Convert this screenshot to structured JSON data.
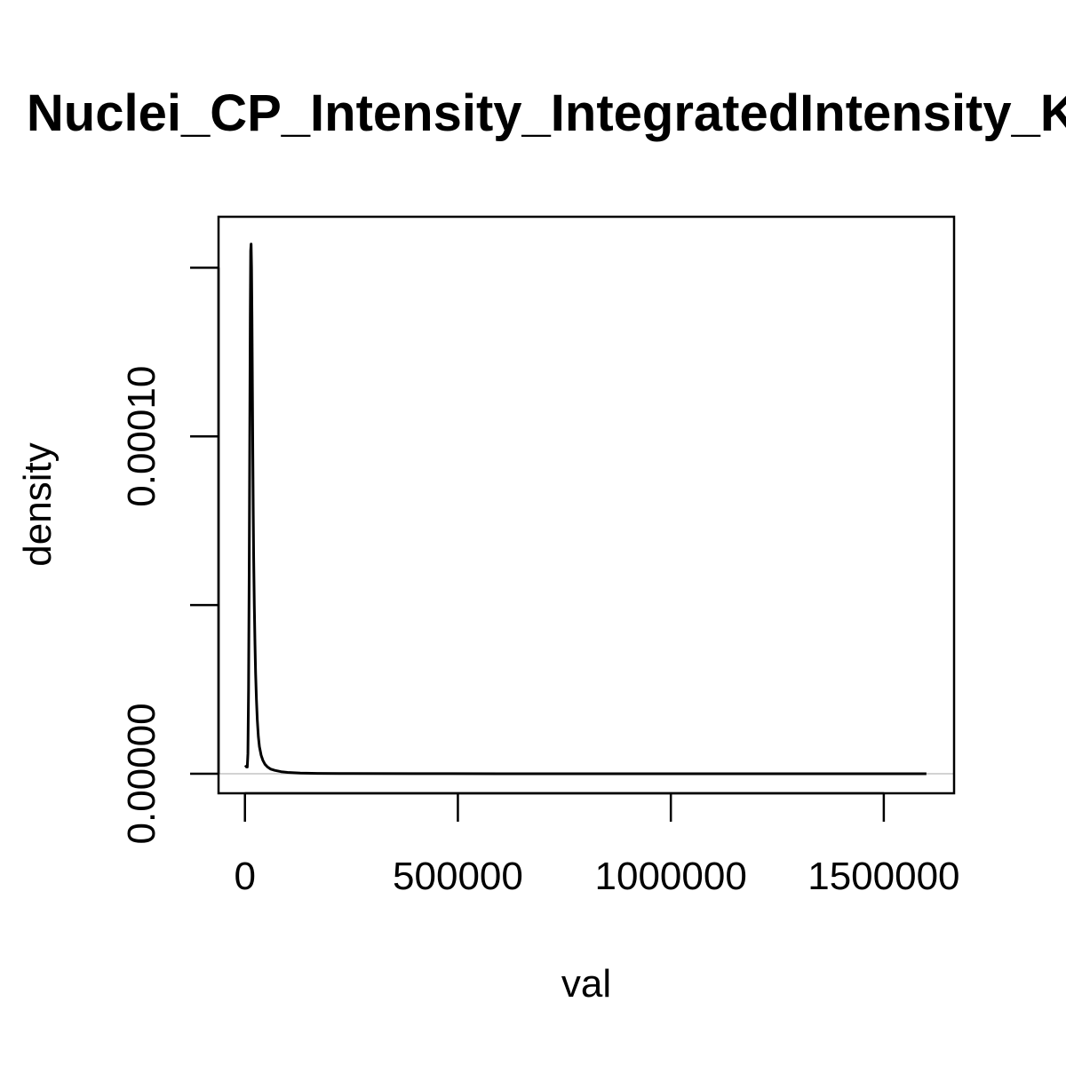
{
  "chart_data": {
    "type": "line",
    "title": "Nuclei_CP_Intensity_IntegratedIntensity_KRT",
    "xlabel": "val",
    "ylabel": "density",
    "xlim": [
      -62000,
      1665000
    ],
    "ylim": [
      -5.8e-06,
      0.0001651
    ],
    "x_ticks": [
      {
        "value": 0,
        "label": "0"
      },
      {
        "value": 500000,
        "label": "500000"
      },
      {
        "value": 1000000,
        "label": "1000000"
      },
      {
        "value": 1500000,
        "label": "1500000"
      }
    ],
    "y_ticks": [
      {
        "value": 0,
        "label": "0.00000"
      },
      {
        "value": 5e-05,
        "label": ""
      },
      {
        "value": 0.0001,
        "label": "0.00010"
      },
      {
        "value": 0.00015,
        "label": ""
      }
    ],
    "baseline": {
      "y": 0,
      "color": "#d3d3d3"
    },
    "line_color": "#000000",
    "series": [
      {
        "x": [
          1000,
          3500,
          5500,
          7000,
          8500,
          10000,
          11500,
          12500,
          13500,
          14500,
          15500,
          16500,
          17500,
          18500,
          19500,
          20500,
          22000,
          23500,
          25000,
          27000,
          29000,
          31500,
          34000,
          38000,
          42000,
          47000,
          53000,
          60000,
          70000,
          85000,
          100000,
          130000,
          170000,
          250000,
          400000,
          600000,
          800000,
          1000000,
          1200000,
          1400000,
          1600000
        ],
        "y": [
          2.5e-06,
          2e-06,
          2e-06,
          6e-06,
          2.5e-05,
          6e-05,
          0.000105,
          0.000135,
          0.000155,
          0.000157,
          0.00015,
          0.000135,
          0.000115,
          9.5e-05,
          7.8e-05,
          6.4e-05,
          5e-05,
          3.9e-05,
          3e-05,
          2.2e-05,
          1.6e-05,
          1.1e-05,
          8e-06,
          5.5e-06,
          4e-06,
          2.8e-06,
          2e-06,
          1.4e-06,
          1e-06,
          6e-07,
          4e-07,
          2e-07,
          1e-07,
          5e-08,
          2e-08,
          1e-08,
          0.0,
          0.0,
          0.0,
          0.0,
          0.0
        ]
      }
    ]
  }
}
